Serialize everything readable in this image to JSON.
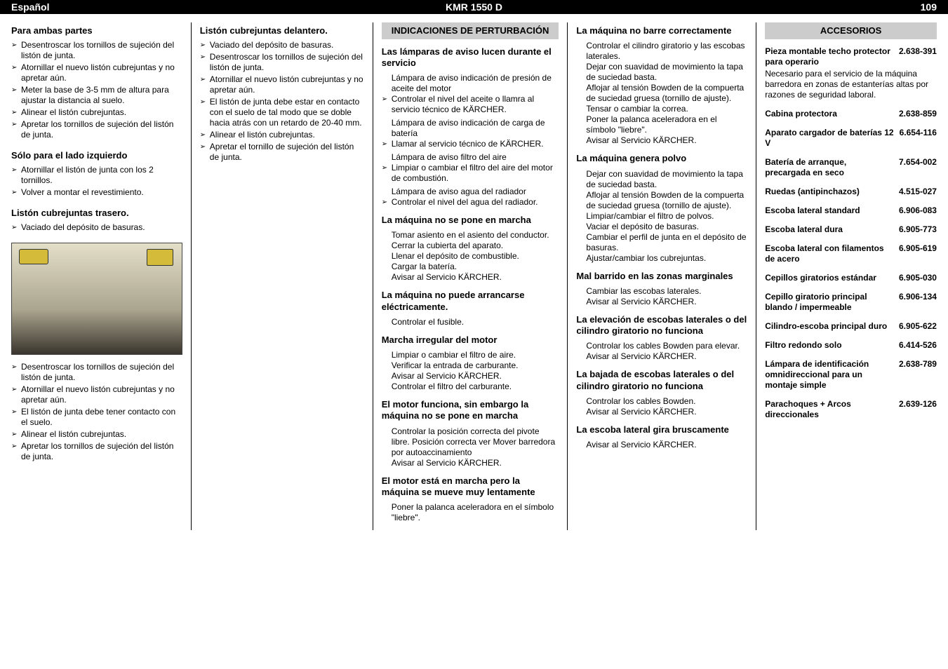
{
  "header": {
    "lang": "Español",
    "model": "KMR 1550 D",
    "page": "109"
  },
  "col1": {
    "s1_title": "Para ambas partes",
    "s1": [
      "Desentroscar los tornillos de sujeción del listón de junta.",
      "Atornillar el nuevo listón cubrejuntas y no apretar aún.",
      "Meter la base de 3-5 mm de altura para ajustar la distancia al suelo.",
      "Alinear el listón cubrejuntas.",
      "Apretar los tornillos de sujeción del listón de junta."
    ],
    "s2_title": "Sólo para el lado izquierdo",
    "s2": [
      "Atornillar el listón de junta con los 2 tornillos.",
      "Volver a montar el revestimiento."
    ],
    "s3_title": "Listón cubrejuntas trasero.",
    "s3": [
      "Vaciado del depósito de basuras."
    ],
    "s4": [
      "Desentroscar los tornillos de sujeción del listón de junta.",
      "Atornillar el nuevo listón cubrejuntas y no apretar aún.",
      "El listón de junta debe tener contacto con el suelo.",
      "Alinear el listón cubrejuntas.",
      "Apretar los tornillos de sujeción del listón de junta."
    ]
  },
  "col2": {
    "s1_title": "Listón cubrejuntas delantero.",
    "s1": [
      "Vaciado del depósito de basuras.",
      "Desentroscar los tornillos de sujeción del listón de junta.",
      "Atornillar el nuevo listón cubrejuntas y no apretar aún.",
      "El listón de junta debe estar en contacto con el suelo de tal modo que se doble hacia atrás con un retardo de 20-40 mm.",
      "Alinear el listón cubrejuntas.",
      "Apretar el tornillo de sujeción del listón de junta."
    ]
  },
  "col3": {
    "boxTitle": "INDICACIONES DE PERTURBACIÓN",
    "p1_title": "Las lámparas de aviso lucen durante el servicio",
    "p1_a": "Lámpara de aviso indicación de presión de aceite del motor",
    "p1_b": [
      "Controlar el nivel del aceite o llamra al servicio técnico de KÄRCHER."
    ],
    "p1_c": "Lámpara de aviso indicación de carga de batería",
    "p1_d": [
      "Llamar al servicio técnico de KÄRCHER."
    ],
    "p1_e": "Lámpara de aviso filtro del aire",
    "p1_f": [
      "Limpiar o cambiar el filtro del aire del motor de combustión."
    ],
    "p1_g": "Lámpara de aviso agua del radiador",
    "p1_h": [
      "Controlar el nivel del agua del radiador."
    ],
    "p2_title": "La máquina no se pone en marcha",
    "p2": "Tomar asiento en el asiento del conductor.\nCerrar la cubierta del aparato.\nLlenar el depósito de combustible.\nCargar la batería.\nAvisar al Servicio KÄRCHER.",
    "p3_title": "La máquina no puede arrancarse eléctricamente.",
    "p3": "Controlar el fusible.",
    "p4_title": "Marcha irregular del motor",
    "p4": "Limpiar o cambiar el filtro de aire.\nVerificar la entrada de carburante.\nAvisar al Servicio KÄRCHER.\nControlar el filtro del carburante.",
    "p5_title": "El motor funciona, sin embargo la máquina no se pone en marcha",
    "p5": "Controlar la posición correcta del pivote libre. Posición correcta ver Mover barredora por autoaccinamiento\nAvisar al Servicio KÄRCHER.",
    "p6_title": "El motor está en marcha pero la máquina se mueve muy lentamente",
    "p6": "Poner la palanca aceleradora en el símbolo \"liebre\"."
  },
  "col4": {
    "p1_title": "La máquina no barre correctamente",
    "p1": "Controlar el cilindro giratorio y las escobas laterales.\nDejar con suavidad de movimiento la tapa de suciedad basta.\nAflojar al tensión Bowden de la compuerta de suciedad gruesa (tornillo de ajuste).\nTensar o cambiar la correa.\nPoner la palanca aceleradora en el símbolo \"liebre\".\nAvisar al Servicio KÄRCHER.",
    "p2_title": "La máquina genera polvo",
    "p2": "Dejar con suavidad de movimiento la tapa de suciedad basta.\nAflojar al tensión Bowden de la compuerta de suciedad gruesa (tornillo de ajuste).\nLimpiar/cambiar el filtro de polvos.\nVaciar el depósito de basuras.\nCambiar el perfil de junta en el depósito de basuras.\nAjustar/cambiar los cubrejuntas.",
    "p3_title": "Mal barrido en las zonas marginales",
    "p3": "Cambiar las escobas laterales.\nAvisar al Servicio KÄRCHER.",
    "p4_title": "La elevación de escobas laterales o del cilindro giratorio no funciona",
    "p4": "Controlar los cables Bowden para elevar.\nAvisar al Servicio KÄRCHER.",
    "p5_title": "La bajada de escobas laterales o del cilindro giratorio no funciona",
    "p5": "Controlar los cables Bowden.\nAvisar al Servicio KÄRCHER.",
    "p6_title": "La escoba lateral gira bruscamente",
    "p6": "Avisar al Servicio KÄRCHER."
  },
  "col5": {
    "boxTitle": "ACCESORIOS",
    "a1_name": "Pieza montable techo protector para operario",
    "a1_num": "2.638-391",
    "a1_desc": "Necesario para el servicio de la máquina barredora en zonas de estanterías altas por razones de seguridad laboral.",
    "items": [
      {
        "name": "Cabina protectora",
        "num": "2.638-859"
      },
      {
        "name": "Aparato cargador de baterías 12 V",
        "num": "6.654-116"
      },
      {
        "name": "Batería de arranque, precargada en seco",
        "num": "7.654-002"
      },
      {
        "name": "Ruedas (antipinchazos)",
        "num": "4.515-027"
      },
      {
        "name": "Escoba lateral standard",
        "num": "6.906-083"
      },
      {
        "name": "Escoba lateral dura",
        "num": "6.905-773"
      },
      {
        "name": "Escoba lateral con filamentos de acero",
        "num": "6.905-619"
      },
      {
        "name": "Cepillos giratorios estándar",
        "num": "6.905-030"
      },
      {
        "name": "Cepillo giratorio principal blando / impermeable",
        "num": "6.906-134"
      },
      {
        "name": "Cilindro-escoba principal duro",
        "num": "6.905-622"
      },
      {
        "name": "Filtro redondo solo",
        "num": "6.414-526"
      },
      {
        "name": "Lámpara de identificación omnidireccional para un montaje simple",
        "num": "2.638-789"
      },
      {
        "name": "Parachoques + Arcos direccionales",
        "num": "2.639-126"
      }
    ]
  }
}
